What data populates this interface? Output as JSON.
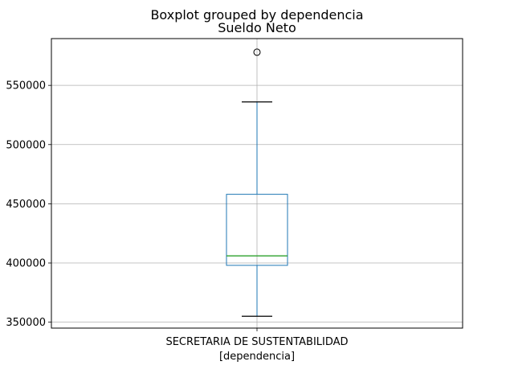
{
  "chart_data": {
    "type": "boxplot",
    "suptitle": "Boxplot grouped by dependencia",
    "title": "Sueldo Neto",
    "xlabel": "[dependencia]",
    "ylabel": "",
    "categories": [
      "SECRETARIA DE SUSTENTABILIDAD"
    ],
    "boxes": [
      {
        "category": "SECRETARIA DE SUSTENTABILIDAD",
        "whisker_low": 355000,
        "q1": 398000,
        "median": 406000,
        "q3": 458000,
        "whisker_high": 536000,
        "outliers": [
          578000
        ]
      }
    ],
    "y_ticks": [
      350000,
      400000,
      450000,
      500000,
      550000
    ],
    "ylim": [
      345000,
      589500
    ],
    "grid": true,
    "colors": {
      "box": "#1f77b4",
      "median": "#2ca02c",
      "whisker_cap": "#000000",
      "grid": "#b0b0b0",
      "outlier": "#000000"
    }
  }
}
